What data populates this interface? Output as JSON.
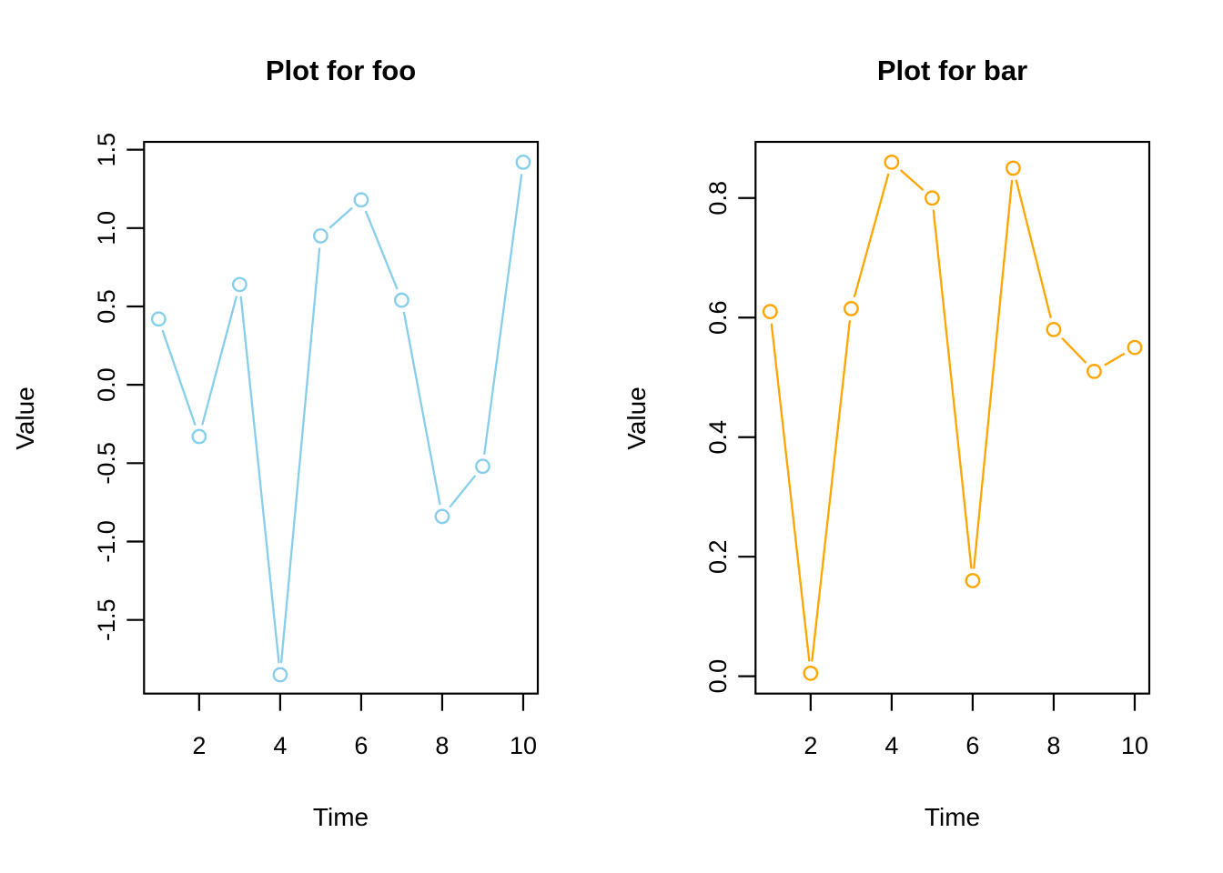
{
  "figure": {
    "background": "#ffffff",
    "axis_color": "#000000"
  },
  "chart_data": [
    {
      "type": "line",
      "title": "Plot for foo",
      "xlabel": "Time",
      "ylabel": "Value",
      "series_name": "foo",
      "color": "#87CEEB",
      "marker": "open-circle",
      "line_style": "points-with-segments",
      "x": [
        1,
        2,
        3,
        4,
        5,
        6,
        7,
        8,
        9,
        10
      ],
      "values": [
        0.42,
        -0.33,
        0.64,
        -1.85,
        0.95,
        1.18,
        0.54,
        -0.84,
        -0.52,
        1.42
      ],
      "xlim": [
        0.64,
        10.36
      ],
      "ylim": [
        -1.97,
        1.55
      ],
      "xticks": [
        2,
        4,
        6,
        8,
        10
      ],
      "xtick_labels": [
        "2",
        "4",
        "6",
        "8",
        "10"
      ],
      "yticks": [
        -1.5,
        -1.0,
        -0.5,
        0.0,
        0.5,
        1.0,
        1.5
      ],
      "ytick_labels": [
        "-1.5",
        "-1.0",
        "-0.5",
        "0.0",
        "0.5",
        "1.0",
        "1.5"
      ],
      "grid": "off",
      "legend": "none"
    },
    {
      "type": "line",
      "title": "Plot for bar",
      "xlabel": "Time",
      "ylabel": "Value",
      "series_name": "bar",
      "color": "#FFA500",
      "marker": "open-circle",
      "line_style": "points-with-segments",
      "x": [
        1,
        2,
        3,
        4,
        5,
        6,
        7,
        8,
        9,
        10
      ],
      "values": [
        0.61,
        0.005,
        0.615,
        0.86,
        0.8,
        0.16,
        0.85,
        0.58,
        0.51,
        0.55
      ],
      "xlim": [
        0.64,
        10.36
      ],
      "ylim": [
        -0.029,
        0.894
      ],
      "xticks": [
        2,
        4,
        6,
        8,
        10
      ],
      "xtick_labels": [
        "2",
        "4",
        "6",
        "8",
        "10"
      ],
      "yticks": [
        0.0,
        0.2,
        0.4,
        0.6,
        0.8
      ],
      "ytick_labels": [
        "0.0",
        "0.2",
        "0.4",
        "0.6",
        "0.8"
      ],
      "grid": "off",
      "legend": "none"
    }
  ]
}
